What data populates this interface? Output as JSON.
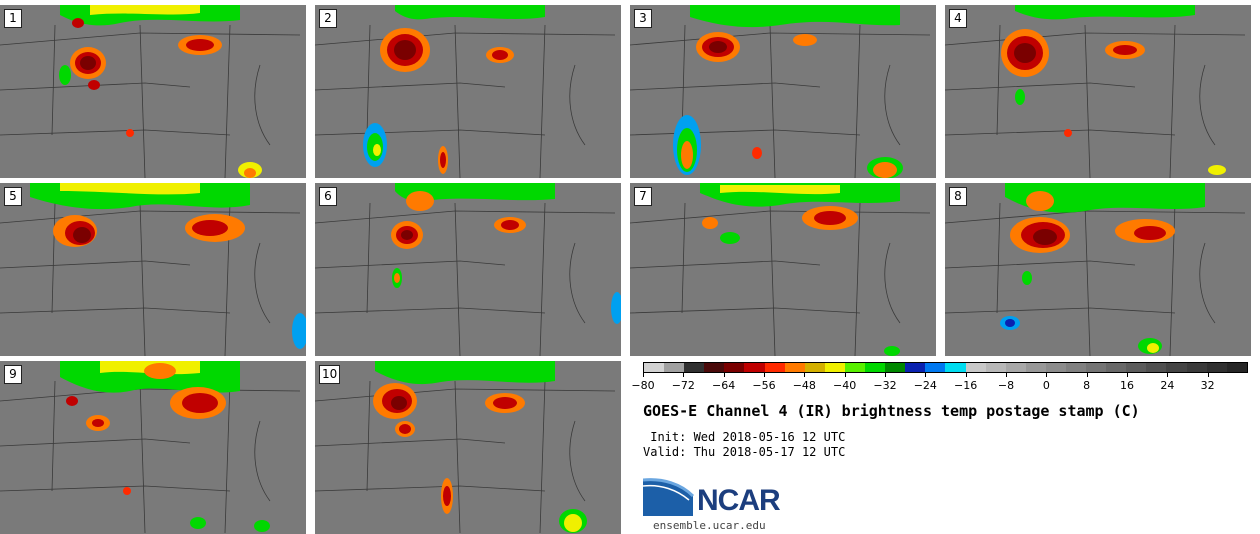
{
  "panels": [
    {
      "label": "1"
    },
    {
      "label": "2"
    },
    {
      "label": "3"
    },
    {
      "label": "4"
    },
    {
      "label": "5"
    },
    {
      "label": "6"
    },
    {
      "label": "7"
    },
    {
      "label": "8"
    },
    {
      "label": "9"
    },
    {
      "label": "10"
    }
  ],
  "colorbar": {
    "colors": [
      "#d2d2d2",
      "#a0a0a0",
      "#303030",
      "#4a0a0a",
      "#7a0000",
      "#c00000",
      "#ff2a00",
      "#ff7a00",
      "#d4b000",
      "#f0f000",
      "#58f000",
      "#00d800",
      "#008800",
      "#0a22b0",
      "#0078f0",
      "#00dcf0",
      "#c8c8c8",
      "#b8b8b8",
      "#a8a8a8",
      "#989898",
      "#8c8c8c",
      "#808080",
      "#747474",
      "#686868",
      "#5c5c5c",
      "#505050",
      "#444444",
      "#3a3a3a",
      "#303030",
      "#262626"
    ],
    "tick_labels": [
      "−80",
      "−72",
      "−64",
      "−56",
      "−48",
      "−40",
      "−32",
      "−24",
      "−16",
      "−8",
      "0",
      "8",
      "16",
      "24",
      "32"
    ]
  },
  "title": "GOES-E Channel 4 (IR) brightness temp postage stamp (C)",
  "init_line": " Init: Wed 2018-05-16 12 UTC",
  "valid_line": "Valid: Thu 2018-05-17 12 UTC",
  "logo": {
    "text": "NCAR",
    "site": "ensemble.ucar.edu",
    "color": "#1c3e7e"
  }
}
